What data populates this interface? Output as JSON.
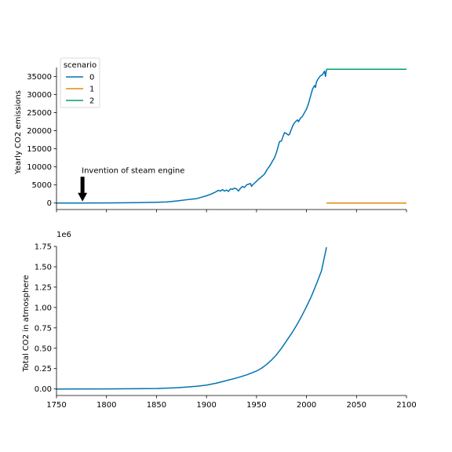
{
  "chart_data": [
    {
      "type": "line",
      "ylabel": "Yearly CO2 emissions",
      "xlim": [
        1750,
        2100
      ],
      "ylim": [
        -1800,
        37500
      ],
      "xticks": [
        1750,
        1800,
        1850,
        1900,
        1950,
        2000,
        2050,
        2100
      ],
      "yticks": [
        0,
        5000,
        10000,
        15000,
        20000,
        25000,
        30000,
        35000
      ],
      "ytick_labels": [
        "0",
        "5000",
        "10000",
        "15000",
        "20000",
        "25000",
        "30000",
        "35000"
      ],
      "show_xtick_labels": false,
      "legend": {
        "title": "scenario",
        "placement": "upper-left"
      },
      "annotation": {
        "text": "Invention of steam engine",
        "x": 1776,
        "y": 0,
        "text_x": 1776,
        "text_y": 9000
      },
      "series": [
        {
          "name": "0",
          "color": "#0173b2",
          "x": [
            1750,
            1770,
            1790,
            1810,
            1830,
            1850,
            1860,
            1870,
            1880,
            1890,
            1895,
            1900,
            1905,
            1908,
            1910,
            1912,
            1914,
            1916,
            1918,
            1920,
            1922,
            1924,
            1926,
            1928,
            1930,
            1932,
            1934,
            1936,
            1938,
            1940,
            1942,
            1944,
            1945,
            1946,
            1948,
            1950,
            1952,
            1954,
            1956,
            1958,
            1960,
            1962,
            1964,
            1966,
            1968,
            1970,
            1972,
            1973,
            1975,
            1976,
            1978,
            1980,
            1982,
            1983,
            1985,
            1987,
            1989,
            1991,
            1992,
            1994,
            1996,
            1998,
            2000,
            2002,
            2004,
            2006,
            2008,
            2009,
            2010,
            2012,
            2014,
            2016,
            2017,
            2018,
            2019,
            2020
          ],
          "y": [
            0,
            0,
            10,
            40,
            100,
            200,
            300,
            550,
            900,
            1200,
            1600,
            2000,
            2500,
            2900,
            3200,
            3500,
            3300,
            3700,
            3300,
            3600,
            3200,
            3900,
            3800,
            4100,
            3900,
            3300,
            4100,
            4600,
            4300,
            5000,
            5200,
            5400,
            4600,
            5000,
            5500,
            6000,
            6600,
            7000,
            7500,
            8000,
            9000,
            9800,
            10600,
            11600,
            12500,
            14000,
            16000,
            17000,
            17200,
            18000,
            19500,
            19200,
            18800,
            19000,
            20500,
            21800,
            22500,
            23000,
            22500,
            23500,
            24000,
            25000,
            26000,
            27500,
            29500,
            31500,
            32500,
            32000,
            33500,
            34500,
            35200,
            35500,
            36000,
            36500,
            35000,
            37000
          ]
        },
        {
          "name": "1",
          "color": "#de8f05",
          "x": [
            2020,
            2100
          ],
          "y": [
            0,
            0
          ]
        },
        {
          "name": "2",
          "color": "#029e73",
          "x": [
            2020,
            2100
          ],
          "y": [
            37000,
            37000
          ]
        }
      ]
    },
    {
      "type": "line",
      "ylabel": "Total CO2 in atmosphere",
      "scale_label": "1e6",
      "xlim": [
        1750,
        2100
      ],
      "ylim": [
        -0.08,
        1.75
      ],
      "xticks": [
        1750,
        1800,
        1850,
        1900,
        1950,
        2000,
        2050,
        2100
      ],
      "xtick_labels": [
        "1750",
        "1800",
        "1850",
        "1900",
        "1950",
        "2000",
        "2050",
        "2100"
      ],
      "yticks": [
        0,
        0.25,
        0.5,
        0.75,
        1.0,
        1.25,
        1.5,
        1.75
      ],
      "ytick_labels": [
        "0.00",
        "0.25",
        "0.50",
        "0.75",
        "1.00",
        "1.25",
        "1.50",
        "1.75"
      ],
      "series": [
        {
          "name": "0",
          "color": "#0173b2",
          "x": [
            1750,
            1800,
            1850,
            1870,
            1880,
            1890,
            1900,
            1910,
            1920,
            1930,
            1940,
            1950,
            1955,
            1960,
            1965,
            1970,
            1975,
            1980,
            1985,
            1990,
            1995,
            2000,
            2005,
            2010,
            2015,
            2020
          ],
          "y": [
            0,
            0.0005,
            0.006,
            0.015,
            0.023,
            0.033,
            0.048,
            0.072,
            0.103,
            0.135,
            0.172,
            0.22,
            0.255,
            0.3,
            0.355,
            0.42,
            0.5,
            0.59,
            0.68,
            0.78,
            0.89,
            1.01,
            1.14,
            1.29,
            1.45,
            1.74
          ]
        }
      ]
    }
  ]
}
